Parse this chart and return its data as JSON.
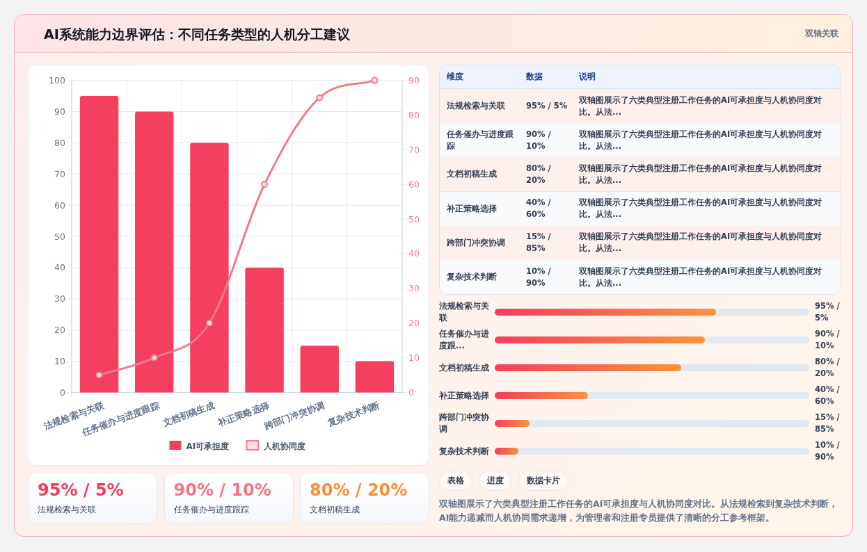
{
  "chart_data": [
    {
      "type": "bar",
      "title": "AI系统能力边界评估：不同任务类型的人机分工建议",
      "annotations": [
        "双轴关联"
      ],
      "categories": [
        "法规检索与关联",
        "任务催办与进度跟踪",
        "文档初稿生成",
        "补正策略选择",
        "跨部门冲突协调",
        "复杂技术判断"
      ],
      "series": [
        {
          "name": "AI可承担度",
          "type": "bar",
          "color": "#f43f5e",
          "values": [
            95,
            90,
            80,
            40,
            15,
            10
          ]
        },
        {
          "name": "人机协同度",
          "type": "line",
          "axis": "y2",
          "color": "#f07a8a",
          "values": [
            5,
            10,
            20,
            60,
            85,
            90
          ]
        }
      ],
      "ylim": [
        0,
        100
      ],
      "yticks": [
        0,
        10,
        20,
        30,
        40,
        50,
        60,
        70,
        80,
        90,
        100
      ],
      "y2lim": [
        0,
        90
      ],
      "y2ticks": [
        0,
        10,
        20,
        30,
        40,
        50,
        60,
        70,
        80,
        90
      ],
      "grid": true,
      "legend": "bottom",
      "marker": "circle"
    },
    {
      "type": "other",
      "categories": [
        "法规检索与关联",
        "任务催办与进度跟踪",
        "文档初稿生成",
        "补正策略选择",
        "跨部门冲突协调",
        "复杂技术判断"
      ],
      "value_labels": [
        "95% / 5%",
        "90% / 10%",
        "80% / 20%",
        "40% / 60%",
        "15% / 85%",
        "10% / 90%"
      ],
      "annotations": [
        "维度",
        "数据",
        "说明",
        "双轴图展示了六类典型注册工作任务的AI可承担度与人机协同度对比。从法...",
        "双轴图展示了六类典型注册工作任务的AI可承担度与人机协同度对比。从法...",
        "双轴图展示了六类典型注册工作任务的AI可承担度与人机协同度对比。从法...",
        "双轴图展示了六类典型注册工作任务的AI可承担度与人机协同度对比。从法...",
        "双轴图展示了六类典型注册工作任务的AI可承担度与人机协同度对比。从法...",
        "双轴图展示了六类典型注册工作任务的AI可承担度与人机协同度对比。从法..."
      ]
    },
    {
      "type": "bar",
      "orientation": "horizontal",
      "color": "#f43f5e",
      "categories": [
        "法规检索与关联",
        "任务催办与进度跟...",
        "文档初稿生成",
        "补正策略选择",
        "跨部门冲突协调",
        "复杂技术判断"
      ],
      "values": [
        95,
        90,
        80,
        40,
        15,
        10
      ],
      "value_labels": [
        "95% / 5%",
        "90% / 10%",
        "80% / 20%",
        "40% / 60%",
        "15% / 85%",
        "10% / 90%"
      ]
    },
    {
      "type": "other",
      "categories": [
        "法规检索与关联",
        "任务催办与进度跟踪",
        "文档初稿生成"
      ],
      "value_labels": [
        "95% / 5%",
        "90% / 10%",
        "80% / 20%"
      ]
    },
    {
      "type": "other",
      "annotations": [
        "表格",
        "进度",
        "数据卡片",
        "双轴图展示了六类典型注册工作任务的AI可承担度与人机协同度对比。从法规检索到复杂技术判断，AI能力递减而人机协同需求递增，为管理者和注册专员提供了清晰的分工参考框架。"
      ]
    }
  ]
}
